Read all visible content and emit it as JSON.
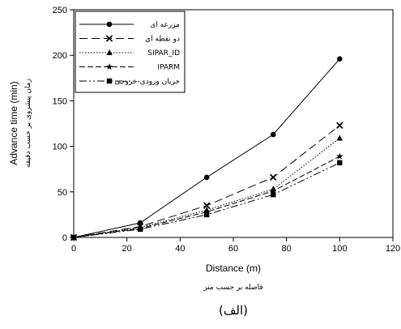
{
  "chart_data": {
    "type": "line",
    "xlabel": "Distance  (m)",
    "xlabel_fa": "فاصله بر حسب متر",
    "ylabel": "Advance time (min)",
    "ylabel_fa": "زمان پیشروی بر حسب دقیقه",
    "panel_label": "(الف)",
    "xlim": [
      0,
      120
    ],
    "ylim": [
      0,
      250
    ],
    "xticks": [
      0,
      20,
      40,
      60,
      80,
      100,
      120
    ],
    "yticks": [
      0,
      50,
      100,
      150,
      200,
      250
    ],
    "grid": false,
    "legend_position": "top-left",
    "series": [
      {
        "name": "مزرعه ای",
        "marker": "circle",
        "dash": "",
        "x": [
          0,
          25,
          50,
          75,
          100
        ],
        "y": [
          0,
          16,
          66,
          113,
          196
        ]
      },
      {
        "name": "دو نقطه ای",
        "marker": "x",
        "dash": "10,5",
        "x": [
          0,
          25,
          50,
          75,
          100
        ],
        "y": [
          0,
          12,
          35,
          66,
          123
        ]
      },
      {
        "name": "SIPAR_ID",
        "marker": "triangle",
        "dash": "1.5,2",
        "x": [
          0,
          25,
          50,
          75,
          100
        ],
        "y": [
          0,
          11,
          30,
          53,
          109
        ]
      },
      {
        "name": "IPARM",
        "marker": "star",
        "dash": "7,3",
        "x": [
          0,
          25,
          50,
          75,
          100
        ],
        "y": [
          0,
          10,
          28,
          51,
          89
        ]
      },
      {
        "name": "جریان ورودی-خروجی",
        "marker": "square",
        "dash": "9,3,2,3,2,3",
        "x": [
          0,
          25,
          50,
          75,
          100
        ],
        "y": [
          0,
          9,
          25,
          47,
          82
        ]
      }
    ]
  }
}
